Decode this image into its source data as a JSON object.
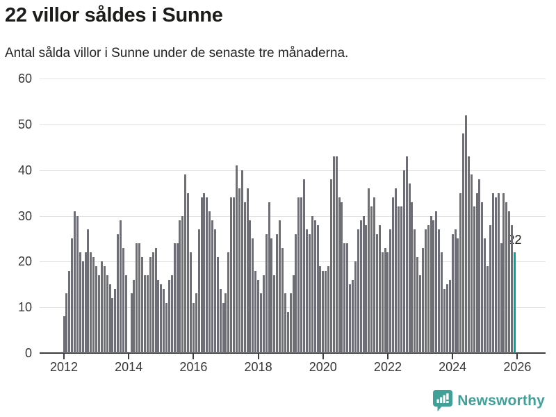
{
  "header": {
    "title": "22 villor såldes i Sunne",
    "subtitle": "Antal sålda villor i Sunne under de senaste tre månaderna."
  },
  "chart_data": {
    "type": "bar",
    "title": "22 villor såldes i Sunne",
    "subtitle": "Antal sålda villor i Sunne under de senaste tre månaderna.",
    "xlabel": "",
    "ylabel": "",
    "ylim": [
      0,
      60
    ],
    "yticks": [
      0,
      10,
      20,
      30,
      40,
      50,
      60
    ],
    "grid": true,
    "legend": "none",
    "frequency": "monthly",
    "start_period": "2012-01",
    "xticks": [
      {
        "label": "2012",
        "index": 0
      },
      {
        "label": "2014",
        "index": 24
      },
      {
        "label": "2016",
        "index": 48
      },
      {
        "label": "2018",
        "index": 72
      },
      {
        "label": "2020",
        "index": 96
      },
      {
        "label": "2022",
        "index": 120
      },
      {
        "label": "2024",
        "index": 144
      },
      {
        "label": "2026",
        "index": 168
      }
    ],
    "values": [
      8,
      13,
      18,
      25,
      31,
      30,
      22,
      20,
      22,
      27,
      22,
      21,
      19,
      17,
      20,
      19,
      17,
      15,
      12,
      14,
      26,
      29,
      23,
      17,
      0,
      13,
      16,
      24,
      24,
      21,
      17,
      17,
      21,
      22,
      23,
      16,
      15,
      14,
      11,
      16,
      17,
      24,
      24,
      29,
      30,
      39,
      35,
      22,
      11,
      13,
      27,
      34,
      35,
      34,
      31,
      29,
      27,
      21,
      14,
      11,
      13,
      22,
      34,
      34,
      41,
      36,
      40,
      33,
      36,
      29,
      25,
      18,
      16,
      13,
      17,
      26,
      33,
      25,
      17,
      26,
      29,
      23,
      13,
      9,
      13,
      17,
      26,
      34,
      34,
      38,
      27,
      26,
      30,
      29,
      28,
      19,
      18,
      18,
      19,
      38,
      43,
      43,
      34,
      33,
      24,
      24,
      15,
      16,
      20,
      27,
      29,
      30,
      28,
      36,
      32,
      34,
      26,
      28,
      22,
      23,
      22,
      27,
      34,
      36,
      32,
      32,
      40,
      43,
      37,
      33,
      27,
      21,
      17,
      23,
      27,
      28,
      30,
      29,
      31,
      27,
      22,
      14,
      15,
      16,
      26,
      27,
      25,
      35,
      48,
      52,
      43,
      39,
      32,
      35,
      38,
      33,
      25,
      19,
      28,
      35,
      34,
      35,
      24,
      35,
      33,
      31,
      28,
      22
    ],
    "bar_color": "#6e6e76",
    "highlight": {
      "index": 167,
      "value": 22,
      "label": "22",
      "color": "#00a1a1"
    }
  },
  "footer": {
    "brand": "Newsworthy",
    "brand_color": "#41a098",
    "logo_icon": "bar-chart-speech-bubble"
  }
}
